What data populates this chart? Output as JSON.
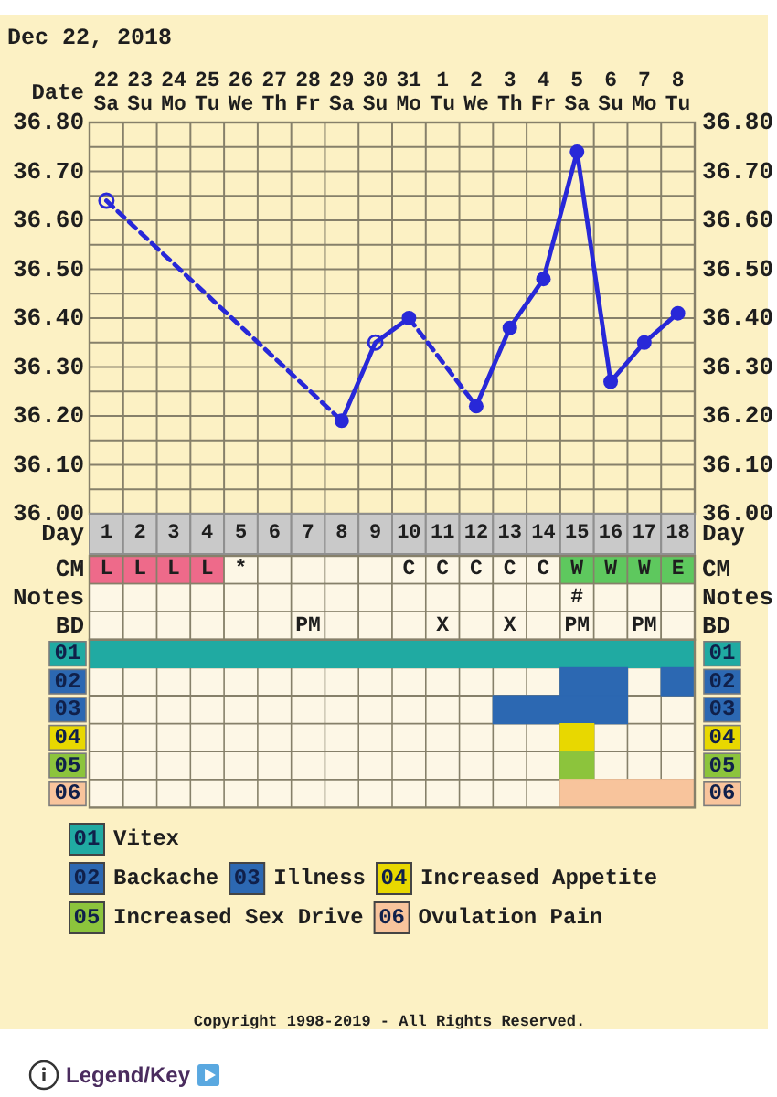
{
  "chart_data": [
    {
      "type": "line",
      "title": "Dec 22, 2018",
      "xlabel": "Date",
      "categories": [
        "22 Sa",
        "23 Su",
        "24 Mo",
        "25 Tu",
        "26 We",
        "27 Th",
        "28 Fr",
        "29 Sa",
        "30 Su",
        "31 Mo",
        "1 Tu",
        "2 We",
        "3 Th",
        "4 Fr",
        "5 Sa",
        "6 Su",
        "7 Mo",
        "8 Tu"
      ],
      "ylim": [
        36,
        36.8
      ],
      "yticks": [
        {
          "value": 36,
          "label": "36.00"
        },
        {
          "value": 36.05,
          "label": null
        },
        {
          "value": 36.1,
          "label": "36.10"
        },
        {
          "value": 36.15,
          "label": null
        },
        {
          "value": 36.2,
          "label": "36.20"
        },
        {
          "value": 36.25,
          "label": null
        },
        {
          "value": 36.3,
          "label": "36.30"
        },
        {
          "value": 36.35,
          "label": null
        },
        {
          "value": 36.4,
          "label": "36.40"
        },
        {
          "value": 36.45,
          "label": null
        },
        {
          "value": 36.5,
          "label": "36.50"
        },
        {
          "value": 36.55,
          "label": null
        },
        {
          "value": 36.6,
          "label": "36.60"
        },
        {
          "value": 36.65,
          "label": null
        },
        {
          "value": 36.7,
          "label": "36.70"
        },
        {
          "value": 36.75,
          "label": null
        },
        {
          "value": 36.8,
          "label": "36.80"
        }
      ],
      "y2lim": [
        36,
        36.8
      ],
      "y2ticks": [
        {
          "value": 36,
          "label": "36.00"
        },
        {
          "value": 36.1,
          "label": "36.10"
        },
        {
          "value": 36.2,
          "label": "36.20"
        },
        {
          "value": 36.3,
          "label": "36.30"
        },
        {
          "value": 36.4,
          "label": "36.40"
        },
        {
          "value": 36.5,
          "label": "36.50"
        },
        {
          "value": 36.6,
          "label": "36.60"
        },
        {
          "value": 36.7,
          "label": "36.70"
        },
        {
          "value": 36.8,
          "label": "36.80"
        }
      ],
      "grid": true,
      "series": [
        {
          "type": "line",
          "x": [
            "22 Sa",
            "29 Sa"
          ],
          "values": [
            36.64,
            36.19
          ],
          "color": "#2828d8",
          "line_style": "dashed"
        },
        {
          "type": "line",
          "x": [
            "29 Sa",
            "30 Su",
            "31 Mo"
          ],
          "values": [
            36.19,
            36.35,
            36.4
          ],
          "color": "#2828d8",
          "line_style": "solid"
        },
        {
          "type": "line",
          "x": [
            "31 Mo",
            "2 We"
          ],
          "values": [
            36.4,
            36.22
          ],
          "color": "#2828d8",
          "line_style": "dashed"
        },
        {
          "type": "line",
          "x": [
            "2 We",
            "3 Th",
            "4 Fr",
            "5 Sa",
            "6 Su",
            "7 Mo",
            "8 Tu"
          ],
          "values": [
            36.22,
            36.38,
            36.48,
            36.74,
            36.27,
            36.35,
            36.41
          ],
          "color": "#2828d8",
          "line_style": "solid"
        },
        {
          "type": "scatter",
          "x": [
            "29 Sa",
            "31 Mo",
            "2 We",
            "3 Th",
            "4 Fr",
            "5 Sa",
            "6 Su",
            "7 Mo",
            "8 Tu"
          ],
          "values": [
            36.19,
            36.4,
            36.22,
            36.38,
            36.48,
            36.74,
            36.27,
            36.35,
            36.41
          ],
          "color": "#2828d8",
          "marker": "circle"
        },
        {
          "type": "scatter",
          "x": [
            "22 Sa",
            "30 Su"
          ],
          "values": [
            36.64,
            36.35
          ],
          "color": "#2828d8",
          "marker": "circle-open"
        }
      ]
    },
    {
      "type": "heatmap",
      "tick_labels": "y",
      "categories": [
        null,
        null,
        null,
        null,
        null,
        null,
        null,
        null,
        null,
        null,
        null,
        null,
        null,
        null,
        null,
        null,
        null,
        null
      ],
      "y_categories": [
        "CM",
        "Notes",
        "BD"
      ],
      "y2_categories": [
        "CM",
        "Notes",
        "BD"
      ],
      "cells": [
        [
          null,
          null,
          null,
          null,
          null,
          null,
          null,
          null,
          null,
          null,
          null,
          null,
          null,
          null,
          null,
          null,
          null,
          null
        ],
        [
          null,
          null,
          null,
          null,
          null,
          null,
          null,
          null,
          null,
          null,
          null,
          null,
          null,
          null,
          null,
          null,
          null,
          null
        ],
        [
          null,
          null,
          null,
          null,
          null,
          null,
          null,
          null,
          null,
          null,
          null,
          null,
          null,
          null,
          null,
          null,
          null,
          null
        ]
      ],
      "cell_labels": [
        [
          "L",
          "L",
          "L",
          "L",
          "*",
          null,
          null,
          null,
          null,
          "C",
          "C",
          "C",
          "C",
          "C",
          "W",
          "W",
          "W",
          "E"
        ],
        [
          null,
          null,
          null,
          null,
          null,
          null,
          null,
          null,
          null,
          null,
          null,
          null,
          null,
          null,
          "#",
          null,
          null,
          null
        ],
        [
          null,
          null,
          null,
          null,
          null,
          null,
          "PM",
          null,
          null,
          null,
          "X",
          null,
          "X",
          null,
          "PM",
          null,
          "PM",
          null
        ]
      ],
      "colors": [
        [
          "#ee6a8a",
          "#ee6a8a",
          "#ee6a8a",
          "#ee6a8a",
          null,
          null,
          null,
          null,
          null,
          null,
          null,
          null,
          null,
          null,
          "#5ec85e",
          "#5ec85e",
          "#5ec85e",
          "#5ec85e"
        ],
        [
          null,
          null,
          null,
          null,
          null,
          null,
          null,
          null,
          null,
          null,
          null,
          null,
          null,
          null,
          null,
          null,
          null,
          null
        ],
        [
          null,
          null,
          null,
          null,
          null,
          null,
          null,
          null,
          null,
          null,
          null,
          null,
          null,
          null,
          null,
          null,
          null,
          null
        ]
      ]
    },
    {
      "type": "bar",
      "orientation": "horizontal",
      "xlabel": "Day",
      "categories": [
        "01",
        "02",
        "03",
        "04",
        "05",
        "06"
      ],
      "xlim": [
        0.5,
        18.5
      ],
      "xticks": [
        1,
        2,
        3,
        4,
        5,
        6,
        7,
        8,
        9,
        10,
        11,
        12,
        13,
        14,
        15,
        16,
        17,
        18
      ],
      "grid": true,
      "legend": "bottom",
      "series": [
        {
          "name": "Vitex",
          "color": "#20aaa2",
          "values": [
            18,
            null,
            null,
            null,
            null,
            null
          ],
          "base": [
            0.5,
            null,
            null,
            null,
            null,
            null
          ]
        },
        {
          "name": "Backache",
          "color": "#2c68b2",
          "values": [
            null,
            2,
            null,
            null,
            null,
            null
          ],
          "base": [
            null,
            14.5,
            null,
            null,
            null,
            null
          ]
        },
        {
          "color": "#2c68b2",
          "values": [
            null,
            1,
            null,
            null,
            null,
            null
          ],
          "base": [
            null,
            17.5,
            null,
            null,
            null,
            null
          ]
        },
        {
          "name": "Illness",
          "color": "#2c68b2",
          "values": [
            null,
            null,
            4,
            null,
            null,
            null
          ],
          "base": [
            null,
            null,
            12.5,
            null,
            null,
            null
          ]
        },
        {
          "name": "Increased Appetite",
          "color": "#e8d800",
          "values": [
            null,
            null,
            null,
            1,
            null,
            null
          ],
          "base": [
            null,
            null,
            null,
            14.5,
            null,
            null
          ]
        },
        {
          "name": "Increased Sex Drive",
          "color": "#8cc43c",
          "values": [
            null,
            null,
            null,
            null,
            1,
            null
          ],
          "base": [
            null,
            null,
            null,
            null,
            14.5,
            null
          ]
        },
        {
          "name": "Ovulation Pain",
          "color": "#f8c49c",
          "values": [
            null,
            null,
            null,
            null,
            null,
            4
          ],
          "base": [
            null,
            null,
            null,
            null,
            null,
            14.5
          ]
        }
      ],
      "annotations": [
        "Copyright 1998-2019 - All Rights Reserved.",
        "Legend/Key"
      ]
    }
  ]
}
